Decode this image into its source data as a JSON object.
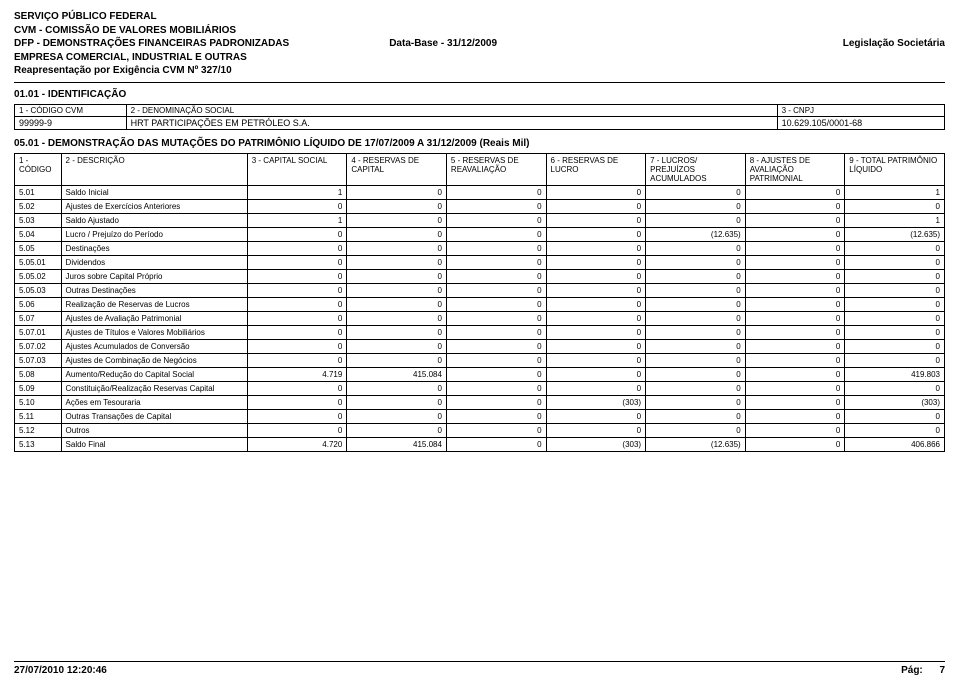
{
  "header": {
    "line1": "SERVIÇO PÚBLICO FEDERAL",
    "line2": "CVM - COMISSÃO DE VALORES MOBILIÁRIOS",
    "line3_left": "DFP - DEMONSTRAÇÕES FINANCEIRAS PADRONIZADAS",
    "line3_mid": "Data-Base - 31/12/2009",
    "line3_right": "Legislação Societária",
    "line4": "EMPRESA COMERCIAL, INDUSTRIAL E OUTRAS",
    "line5": "Reapresentação por Exigência CVM Nº 327/10"
  },
  "identificacao": {
    "title": "01.01 - IDENTIFICAÇÃO",
    "col1_label": "1 - CÓDIGO CVM",
    "col2_label": "2 - DENOMINAÇÃO SOCIAL",
    "col3_label": "3 - CNPJ",
    "col1_value": "99999-9",
    "col2_value": "HRT PARTICIPAÇÕES EM PETRÓLEO S.A.",
    "col3_value": "10.629.105/0001-68"
  },
  "mutacoes": {
    "title": "05.01 - DEMONSTRAÇÃO DAS MUTAÇÕES DO PATRIMÔNIO LÍQUIDO DE 17/07/2009 A 31/12/2009 (Reais Mil)",
    "columns": {
      "c1": "1 - CÓDIGO",
      "c2": "2 - DESCRIÇÃO",
      "c3": "3 - CAPITAL SOCIAL",
      "c4": "4 - RESERVAS DE CAPITAL",
      "c5": "5 - RESERVAS DE REAVALIAÇÃO",
      "c6": "6 - RESERVAS DE LUCRO",
      "c7": "7 - LUCROS/ PREJUÍZOS ACUMULADOS",
      "c8": "8 - AJUSTES DE AVALIAÇÃO PATRIMONIAL",
      "c9": "9 - TOTAL PATRIMÔNIO LÍQUIDO"
    },
    "rows": [
      {
        "code": "5.01",
        "desc": "Saldo Inicial",
        "v": [
          "1",
          "0",
          "0",
          "0",
          "0",
          "0",
          "1"
        ]
      },
      {
        "code": "5.02",
        "desc": "Ajustes de Exercícios Anteriores",
        "v": [
          "0",
          "0",
          "0",
          "0",
          "0",
          "0",
          "0"
        ]
      },
      {
        "code": "5.03",
        "desc": "Saldo Ajustado",
        "v": [
          "1",
          "0",
          "0",
          "0",
          "0",
          "0",
          "1"
        ]
      },
      {
        "code": "5.04",
        "desc": "Lucro / Prejuízo do Período",
        "v": [
          "0",
          "0",
          "0",
          "0",
          "(12.635)",
          "0",
          "(12.635)"
        ]
      },
      {
        "code": "5.05",
        "desc": "Destinações",
        "v": [
          "0",
          "0",
          "0",
          "0",
          "0",
          "0",
          "0"
        ]
      },
      {
        "code": "5.05.01",
        "desc": "Dividendos",
        "v": [
          "0",
          "0",
          "0",
          "0",
          "0",
          "0",
          "0"
        ]
      },
      {
        "code": "5.05.02",
        "desc": "Juros sobre Capital Próprio",
        "v": [
          "0",
          "0",
          "0",
          "0",
          "0",
          "0",
          "0"
        ]
      },
      {
        "code": "5.05.03",
        "desc": "Outras Destinações",
        "v": [
          "0",
          "0",
          "0",
          "0",
          "0",
          "0",
          "0"
        ]
      },
      {
        "code": "5.06",
        "desc": "Realização de Reservas de Lucros",
        "v": [
          "0",
          "0",
          "0",
          "0",
          "0",
          "0",
          "0"
        ]
      },
      {
        "code": "5.07",
        "desc": "Ajustes de Avaliação Patrimonial",
        "v": [
          "0",
          "0",
          "0",
          "0",
          "0",
          "0",
          "0"
        ]
      },
      {
        "code": "5.07.01",
        "desc": "Ajustes de Títulos e Valores Mobiliários",
        "v": [
          "0",
          "0",
          "0",
          "0",
          "0",
          "0",
          "0"
        ]
      },
      {
        "code": "5.07.02",
        "desc": "Ajustes Acumulados de Conversão",
        "v": [
          "0",
          "0",
          "0",
          "0",
          "0",
          "0",
          "0"
        ]
      },
      {
        "code": "5.07.03",
        "desc": "Ajustes de Combinação de Negócios",
        "v": [
          "0",
          "0",
          "0",
          "0",
          "0",
          "0",
          "0"
        ]
      },
      {
        "code": "5.08",
        "desc": "Aumento/Redução do Capital Social",
        "v": [
          "4.719",
          "415.084",
          "0",
          "0",
          "0",
          "0",
          "419.803"
        ]
      },
      {
        "code": "5.09",
        "desc": "Constituição/Realização Reservas Capital",
        "v": [
          "0",
          "0",
          "0",
          "0",
          "0",
          "0",
          "0"
        ]
      },
      {
        "code": "5.10",
        "desc": "Ações em Tesouraria",
        "v": [
          "0",
          "0",
          "0",
          "(303)",
          "0",
          "0",
          "(303)"
        ]
      },
      {
        "code": "5.11",
        "desc": "Outras Transações de Capital",
        "v": [
          "0",
          "0",
          "0",
          "0",
          "0",
          "0",
          "0"
        ]
      },
      {
        "code": "5.12",
        "desc": "Outros",
        "v": [
          "0",
          "0",
          "0",
          "0",
          "0",
          "0",
          "0"
        ]
      },
      {
        "code": "5.13",
        "desc": "Saldo Final",
        "v": [
          "4.720",
          "415.084",
          "0",
          "(303)",
          "(12.635)",
          "0",
          "406.866"
        ]
      }
    ]
  },
  "footer": {
    "timestamp": "27/07/2010 12:20:46",
    "page_label": "Pág:",
    "page_num": "7"
  }
}
